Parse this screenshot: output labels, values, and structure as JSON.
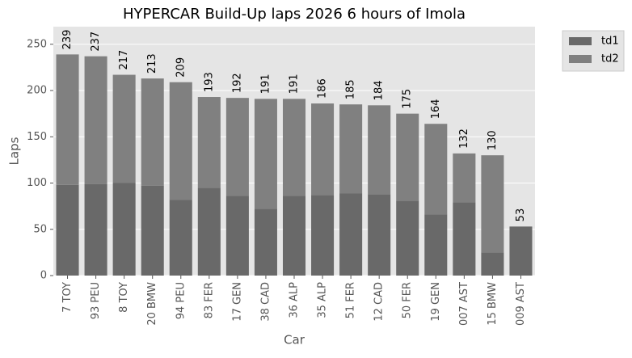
{
  "chart_data": {
    "type": "stacked_bar",
    "title": "HYPERCAR Build-Up laps 2026 6 hours of Imola",
    "x_label": "Car",
    "y_label": "Laps",
    "categories": [
      "7 TOY",
      "93 PEU",
      "8 TOY",
      "20 BMW",
      "94 PEU",
      "83 FER",
      "17 GEN",
      "38 CAD",
      "36 ALP",
      "35 ALP",
      "51 FER",
      "12 CAD",
      "50 FER",
      "19 GEN",
      "007 AST",
      "15 BMW",
      "009 AST"
    ],
    "series": [
      {
        "name": "td1",
        "color": "#696969",
        "values": [
          98,
          99,
          100,
          97,
          82,
          95,
          86,
          72,
          86,
          87,
          89,
          88,
          81,
          66,
          79,
          25,
          53
        ]
      },
      {
        "name": "td2",
        "color": "#808080",
        "values": [
          141,
          138,
          117,
          116,
          127,
          98,
          106,
          119,
          105,
          99,
          96,
          96,
          94,
          98,
          53,
          105,
          0
        ]
      }
    ],
    "total_labels": [
      239,
      237,
      217,
      213,
      209,
      193,
      192,
      191,
      191,
      186,
      185,
      184,
      175,
      164,
      132,
      130,
      53
    ],
    "ylim": [
      0,
      269
    ],
    "yticks": [
      0,
      50,
      100,
      150,
      200,
      250
    ],
    "grid": true,
    "legend": "outside-right"
  }
}
